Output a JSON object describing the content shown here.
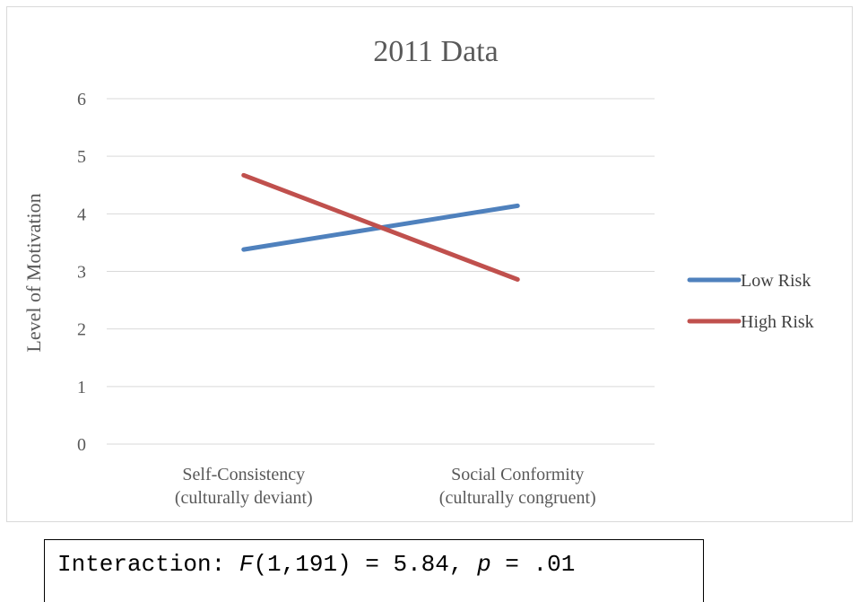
{
  "chart_data": {
    "type": "line",
    "title": "2011 Data",
    "xlabel": "",
    "ylabel": "Level of Motivation",
    "ylim": [
      0,
      6
    ],
    "yticks": [
      "0",
      "1",
      "2",
      "3",
      "4",
      "5",
      "6"
    ],
    "categories": [
      [
        "Self-Consistency",
        "(culturally deviant)"
      ],
      [
        "Social Conformity",
        "(culturally congruent)"
      ]
    ],
    "series": [
      {
        "name": "Low Risk",
        "color": "#4f81bd",
        "values": [
          3.38,
          4.14
        ]
      },
      {
        "name": "High Risk",
        "color": "#c0504d",
        "values": [
          4.67,
          2.86
        ]
      }
    ],
    "grid": true,
    "legend_position": "right"
  },
  "annotation": {
    "prefix": "Interaction: ",
    "stat_symbol": "F",
    "stat_args": "(1,191) = 5.84, ",
    "p_symbol": "p",
    "p_value": " = .01"
  }
}
